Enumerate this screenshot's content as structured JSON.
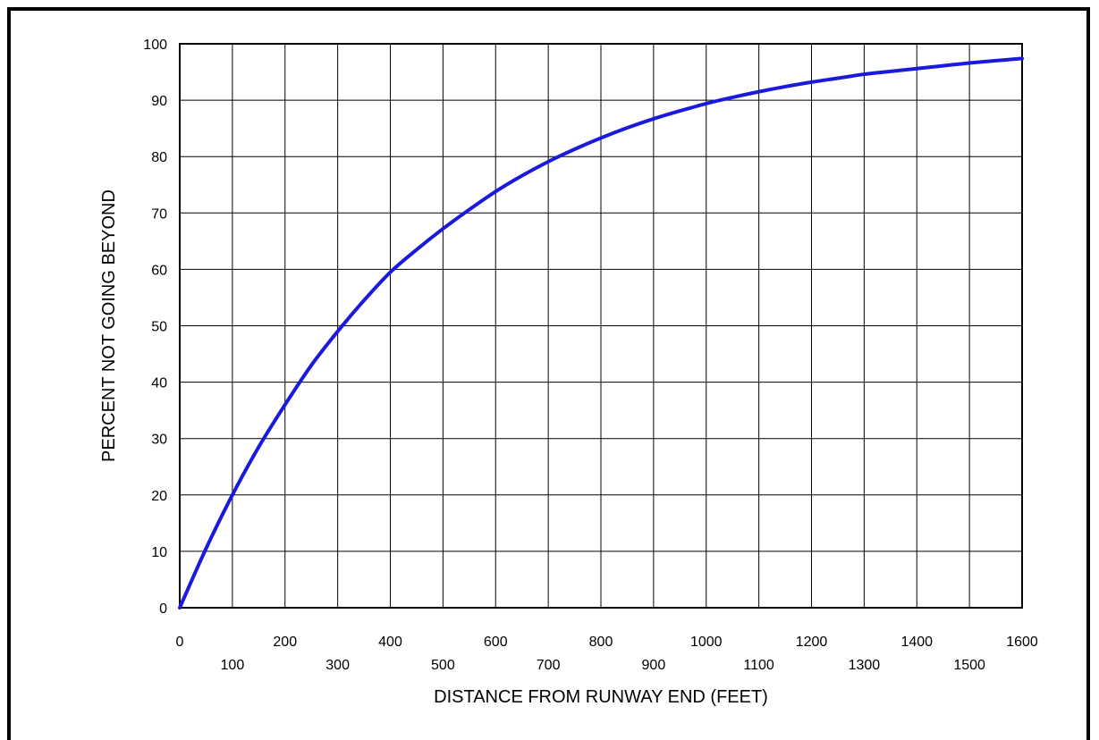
{
  "chart_data": {
    "type": "line",
    "title": "",
    "xlabel": "DISTANCE FROM RUNWAY END (FEET)",
    "ylabel": "PERCENT NOT GOING BEYOND",
    "xlim": [
      0,
      1600
    ],
    "ylim": [
      0,
      100
    ],
    "x_ticks_upper": [
      "0",
      "200",
      "400",
      "600",
      "800",
      "1000",
      "1200",
      "1400",
      "1600"
    ],
    "x_ticks_lower": [
      "100",
      "300",
      "500",
      "700",
      "900",
      "1100",
      "1300",
      "1500"
    ],
    "y_ticks": [
      "0",
      "10",
      "20",
      "30",
      "40",
      "50",
      "60",
      "70",
      "80",
      "90",
      "100"
    ],
    "grid": true,
    "line_color": "#1a1adc",
    "series": [
      {
        "x": [
          0,
          50,
          100,
          150,
          200,
          250,
          300,
          350,
          400,
          450,
          500,
          550,
          600,
          650,
          700,
          750,
          800,
          850,
          900,
          950,
          1000,
          1050,
          1100,
          1150,
          1200,
          1250,
          1300,
          1350,
          1400,
          1450,
          1500,
          1550,
          1600
        ],
        "y": [
          0,
          10.5,
          20,
          28.5,
          36,
          43,
          49,
          54.5,
          59.5,
          63.5,
          67.2,
          70.6,
          73.8,
          76.6,
          79.1,
          81.3,
          83.3,
          85.1,
          86.7,
          88.1,
          89.4,
          90.5,
          91.5,
          92.4,
          93.2,
          93.9,
          94.6,
          95.1,
          95.6,
          96.1,
          96.6,
          97.0,
          97.4
        ]
      }
    ]
  }
}
